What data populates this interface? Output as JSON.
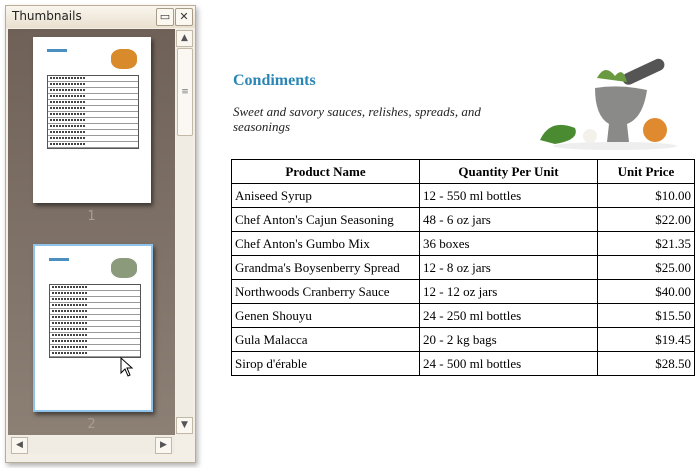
{
  "panel": {
    "title": "Thumbnails",
    "maximize_icon": "maximize-icon",
    "close_icon": "close-icon",
    "pages": [
      "1",
      "2"
    ],
    "selected_page": "2"
  },
  "report": {
    "title": "Condiments",
    "description": "Sweet and savory sauces, relishes, spreads, and seasonings",
    "columns": [
      "Product Name",
      "Quantity Per Unit",
      "Unit Price"
    ],
    "rows": [
      [
        "Aniseed Syrup",
        "12 - 550 ml bottles",
        "$10.00"
      ],
      [
        "Chef Anton's Cajun Seasoning",
        "48 - 6 oz jars",
        "$22.00"
      ],
      [
        "Chef Anton's Gumbo Mix",
        "36 boxes",
        "$21.35"
      ],
      [
        "Grandma's Boysenberry Spread",
        "12 - 8 oz jars",
        "$25.00"
      ],
      [
        "Northwoods Cranberry Sauce",
        "12 - 12 oz jars",
        "$40.00"
      ],
      [
        "Genen Shouyu",
        "24 - 250 ml bottles",
        "$15.50"
      ],
      [
        "Gula Malacca",
        "20 - 2 kg bags",
        "$19.45"
      ],
      [
        "Sirop d'érable",
        "24 - 500 ml bottles",
        "$28.50"
      ]
    ]
  },
  "accent": "#2a86b4"
}
